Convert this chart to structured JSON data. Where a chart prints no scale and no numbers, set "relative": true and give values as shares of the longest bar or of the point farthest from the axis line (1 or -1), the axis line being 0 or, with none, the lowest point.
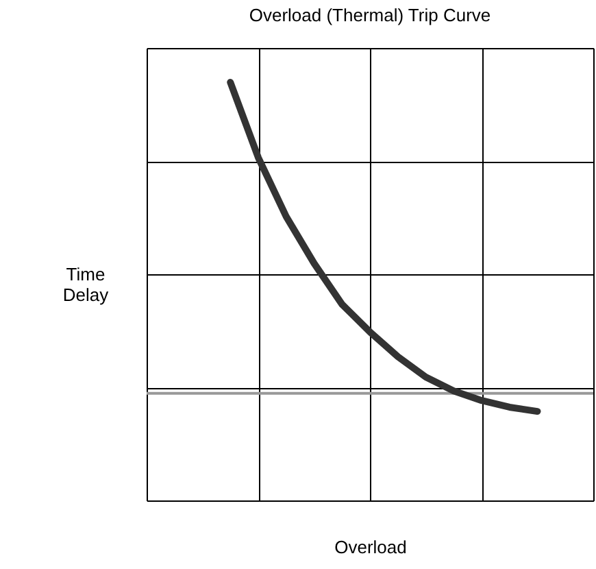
{
  "chart_data": {
    "type": "line",
    "title": "Overload (Thermal) Trip Curve",
    "xlabel": "Overload",
    "ylabel": "Time Delay",
    "relative": true,
    "grid": true,
    "marker": "none",
    "line_style": "solid",
    "categories": [
      null,
      null,
      null,
      null,
      null,
      null,
      null,
      null,
      null,
      null,
      null,
      null,
      null,
      null,
      null,
      null,
      null
    ],
    "series": [
      {
        "color": "#333333",
        "values": [
          null,
          null,
          null,
          1,
          0.82,
          0.679,
          0.567,
          0.469,
          0.403,
          0.344,
          0.295,
          0.262,
          0.239,
          0.223,
          0.213,
          null,
          null
        ]
      }
    ],
    "ref_lines": [
      {
        "axis": "y",
        "value": 0.256,
        "color": "#999999",
        "line_style": "solid"
      }
    ]
  }
}
